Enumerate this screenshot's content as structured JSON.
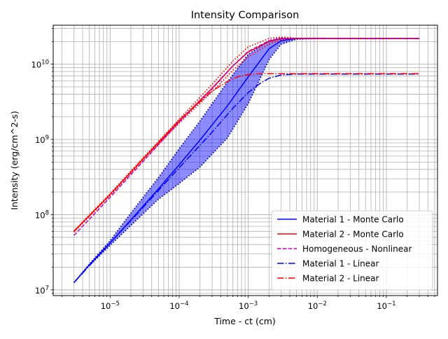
{
  "chart_data": {
    "type": "line",
    "title": "Intensity Comparison",
    "xlabel": "Time - ct (cm)",
    "ylabel": "Intensity (erg/cm^2-s)",
    "xscale": "log",
    "yscale": "log",
    "xlim": [
      1.5e-06,
      0.55
    ],
    "ylim": [
      8400000.0,
      33000000000.0
    ],
    "grid": "major and minor",
    "legend_position": "lower right",
    "xticks": [
      {
        "value": 1e-05,
        "base": "10",
        "exp": "−5"
      },
      {
        "value": 0.0001,
        "base": "10",
        "exp": "−4"
      },
      {
        "value": 0.001,
        "base": "10",
        "exp": "−3"
      },
      {
        "value": 0.01,
        "base": "10",
        "exp": "−2"
      },
      {
        "value": 0.1,
        "base": "10",
        "exp": "−1"
      }
    ],
    "yticks": [
      {
        "value": 10000000.0,
        "base": "10",
        "exp": "7"
      },
      {
        "value": 100000000.0,
        "base": "10",
        "exp": "8"
      },
      {
        "value": 1000000000.0,
        "base": "10",
        "exp": "9"
      },
      {
        "value": 10000000000.0,
        "base": "10",
        "exp": "10"
      }
    ],
    "band": {
      "color": "#0000ff",
      "opacity": 0.45,
      "x": [
        3e-06,
        5e-06,
        1e-05,
        2e-05,
        5e-05,
        0.0001,
        0.0002,
        0.0005,
        0.001,
        0.002,
        0.003,
        0.005,
        0.01,
        0.3
      ],
      "upper": [
        12500000.0,
        22000000.0,
        45000000.0,
        105000000.0,
        310000000.0,
        750000000.0,
        1750000000.0,
        5800000000.0,
        13500000000.0,
        20500000000.0,
        22500000000.0,
        22000000000.0,
        22000000000.0,
        22000000000.0
      ],
      "lower": [
        12500000.0,
        21000000.0,
        39000000.0,
        72000000.0,
        160000000.0,
        260000000.0,
        430000000.0,
        1050000000.0,
        3000000000.0,
        11500000000.0,
        18500000000.0,
        21500000000.0,
        22000000000.0,
        22000000000.0
      ]
    },
    "series": [
      {
        "name": "Material 1 - Monte Carlo",
        "color": "#0000ff",
        "dash": "solid",
        "x": [
          3e-06,
          5e-06,
          1e-05,
          2e-05,
          5e-05,
          0.0001,
          0.0002,
          0.0005,
          0.001,
          0.002,
          0.003,
          0.005,
          0.01,
          0.3
        ],
        "y": [
          12500000.0,
          21500000.0,
          42000000.0,
          85000000.0,
          220000000.0,
          460000000.0,
          980000000.0,
          2800000000.0,
          6800000000.0,
          16000000000.0,
          20500000000.0,
          22000000000.0,
          22000000000.0,
          22000000000.0
        ]
      },
      {
        "name": "Material 2 - Monte Carlo",
        "color": "#ff0000",
        "dash": "solid",
        "x": [
          3e-06,
          1e-05,
          3e-05,
          0.0001,
          0.0003,
          0.0006,
          0.001,
          0.002,
          0.003,
          0.005,
          0.3
        ],
        "y": [
          60000000.0,
          185000000.0,
          550000000.0,
          1750000000.0,
          4800000000.0,
          9500000000.0,
          14500000000.0,
          20000000000.0,
          21800000000.0,
          22000000000.0,
          22000000000.0
        ]
      },
      {
        "name": "Homogeneous - Nonlinear",
        "color": "#bf00bf",
        "dash": "dashed",
        "x": [
          3e-06,
          1e-05,
          3e-05,
          0.0001,
          0.0003,
          0.0006,
          0.001,
          0.002,
          0.003,
          0.005,
          0.3
        ],
        "y": [
          53000000.0,
          170000000.0,
          510000000.0,
          1700000000.0,
          4700000000.0,
          9500000000.0,
          14800000000.0,
          20500000000.0,
          22000000000.0,
          22000000000.0,
          22000000000.0
        ]
      },
      {
        "name": "Material 1 - Linear",
        "color": "#0000ff",
        "dash": "dashdot",
        "x": [
          3e-06,
          1e-05,
          3e-05,
          0.0001,
          0.0003,
          0.0006,
          0.001,
          0.0015,
          0.002,
          0.003,
          0.005,
          0.3
        ],
        "y": [
          12500000.0,
          42000000.0,
          125000000.0,
          420000000.0,
          1250000000.0,
          2600000000.0,
          4200000000.0,
          5600000000.0,
          6500000000.0,
          7200000000.0,
          7400000000.0,
          7400000000.0
        ]
      },
      {
        "name": "Material 2 - Linear",
        "color": "#ff0000",
        "dash": "dashdot",
        "x": [
          3e-06,
          1e-05,
          3e-05,
          0.0001,
          0.0003,
          0.0005,
          0.0007,
          0.001,
          0.0015,
          0.002,
          0.003,
          0.3
        ],
        "y": [
          60000000.0,
          185000000.0,
          550000000.0,
          1800000000.0,
          4400000000.0,
          5900000000.0,
          6800000000.0,
          7300000000.0,
          7500000000.0,
          7500000000.0,
          7500000000.0,
          7500000000.0
        ]
      }
    ],
    "dotted_bounds": [
      {
        "name": "Material 2 - Monte Carlo upper",
        "color": "#ff0000",
        "x": [
          3e-06,
          1e-05,
          3e-05,
          0.0001,
          0.0003,
          0.0006,
          0.001,
          0.002,
          0.003,
          0.005,
          0.3
        ],
        "y": [
          61000000.0,
          190000000.0,
          570000000.0,
          1850000000.0,
          5400000000.0,
          11000000000.0,
          17000000000.0,
          22000000000.0,
          23000000000.0,
          22200000000.0,
          22000000000.0
        ]
      },
      {
        "name": "Material 2 - Monte Carlo lower",
        "color": "#ff0000",
        "x": [
          3e-06,
          1e-05,
          3e-05,
          0.0001,
          0.0003,
          0.0006,
          0.001,
          0.002,
          0.003,
          0.005,
          0.3
        ],
        "y": [
          59000000.0,
          180000000.0,
          530000000.0,
          1650000000.0,
          4300000000.0,
          8300000000.0,
          12500000000.0,
          18500000000.0,
          21000000000.0,
          22000000000.0,
          22000000000.0
        ]
      }
    ]
  }
}
